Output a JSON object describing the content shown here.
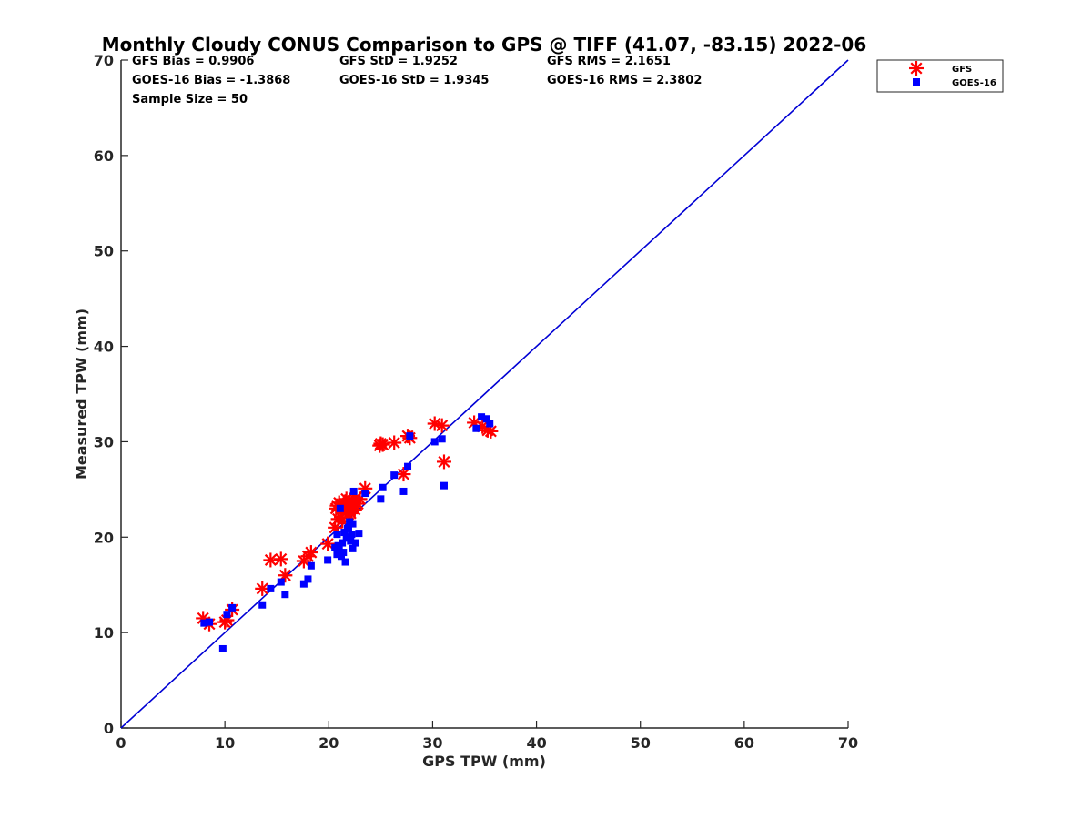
{
  "chart_data": {
    "type": "scatter",
    "title": "Monthly Cloudy CONUS Comparison to GPS @ TIFF (41.07, -83.15) 2022-06",
    "xlabel": "GPS TPW (mm)",
    "ylabel": "Measured TPW (mm)",
    "xlim": [
      0,
      70
    ],
    "ylim": [
      0,
      70
    ],
    "xticks": [
      0,
      10,
      20,
      30,
      40,
      50,
      60,
      70
    ],
    "yticks": [
      0,
      10,
      20,
      30,
      40,
      50,
      60,
      70
    ],
    "grid": false,
    "legend_position": "top-right outside",
    "reference_line": {
      "x": [
        0,
        70
      ],
      "y": [
        0,
        70
      ],
      "color": "#0000d4"
    },
    "stats": {
      "gfs_bias": "GFS Bias = 0.9906",
      "gfs_std": "GFS StD = 1.9252",
      "gfs_rms": "GFS RMS = 2.1651",
      "goes_bias": "GOES-16 Bias = -1.3868",
      "goes_std": "GOES-16 StD = 1.9345",
      "goes_rms": "GOES-16 RMS = 2.3802",
      "sample_size": "Sample Size = 50"
    },
    "series": [
      {
        "name": "GFS",
        "marker": "asterisk",
        "color": "#ff0000",
        "points": [
          [
            7.9,
            11.5
          ],
          [
            8.5,
            10.9
          ],
          [
            10.0,
            11.1
          ],
          [
            10.2,
            11.3
          ],
          [
            10.7,
            12.4
          ],
          [
            13.6,
            14.6
          ],
          [
            14.4,
            17.6
          ],
          [
            15.4,
            17.7
          ],
          [
            15.8,
            16.0
          ],
          [
            17.6,
            17.5
          ],
          [
            18.0,
            18.0
          ],
          [
            18.3,
            18.4
          ],
          [
            19.9,
            19.3
          ],
          [
            20.6,
            21.0
          ],
          [
            20.8,
            23.3
          ],
          [
            21.0,
            23.6
          ],
          [
            21.2,
            22.1
          ],
          [
            21.3,
            21.7
          ],
          [
            21.5,
            23.0
          ],
          [
            21.8,
            23.3
          ],
          [
            22.0,
            23.9
          ],
          [
            22.2,
            23.6
          ],
          [
            22.4,
            23.2
          ],
          [
            22.6,
            24.1
          ],
          [
            22.8,
            23.5
          ],
          [
            23.5,
            25.1
          ],
          [
            24.9,
            29.6
          ],
          [
            25.2,
            29.7
          ],
          [
            26.3,
            29.9
          ],
          [
            27.2,
            26.6
          ],
          [
            27.6,
            30.6
          ],
          [
            27.8,
            30.4
          ],
          [
            30.2,
            31.9
          ],
          [
            30.9,
            31.7
          ],
          [
            31.1,
            27.9
          ],
          [
            34.0,
            32.0
          ],
          [
            34.8,
            31.6
          ],
          [
            35.3,
            31.2
          ],
          [
            35.6,
            31.1
          ],
          [
            22.1,
            22.5
          ],
          [
            20.9,
            21.9
          ],
          [
            21.6,
            22.8
          ],
          [
            22.3,
            23.8
          ],
          [
            21.4,
            23.4
          ],
          [
            23.0,
            24.0
          ],
          [
            21.7,
            24.0
          ],
          [
            20.7,
            23.0
          ],
          [
            22.5,
            22.9
          ],
          [
            21.9,
            22.4
          ],
          [
            25.0,
            29.8
          ]
        ]
      },
      {
        "name": "GOES-16",
        "marker": "square",
        "color": "#0000ff",
        "points": [
          [
            8.0,
            11.0
          ],
          [
            8.5,
            11.1
          ],
          [
            9.8,
            8.3
          ],
          [
            10.2,
            11.9
          ],
          [
            10.7,
            12.6
          ],
          [
            13.6,
            12.9
          ],
          [
            14.4,
            14.6
          ],
          [
            15.4,
            15.3
          ],
          [
            15.8,
            14.0
          ],
          [
            17.6,
            15.1
          ],
          [
            18.0,
            15.6
          ],
          [
            18.3,
            17.0
          ],
          [
            19.9,
            17.6
          ],
          [
            20.6,
            18.9
          ],
          [
            20.8,
            18.2
          ],
          [
            21.0,
            18.7
          ],
          [
            21.1,
            23.0
          ],
          [
            21.2,
            18.0
          ],
          [
            21.3,
            19.4
          ],
          [
            21.5,
            20.5
          ],
          [
            21.6,
            17.4
          ],
          [
            21.8,
            20.9
          ],
          [
            22.0,
            21.6
          ],
          [
            22.1,
            19.6
          ],
          [
            22.2,
            20.3
          ],
          [
            22.3,
            18.8
          ],
          [
            22.4,
            24.8
          ],
          [
            22.6,
            19.4
          ],
          [
            22.9,
            20.4
          ],
          [
            23.5,
            24.6
          ],
          [
            25.0,
            24.0
          ],
          [
            25.2,
            25.2
          ],
          [
            26.3,
            26.5
          ],
          [
            27.2,
            24.8
          ],
          [
            27.6,
            27.4
          ],
          [
            27.8,
            30.6
          ],
          [
            30.2,
            30.0
          ],
          [
            30.9,
            30.3
          ],
          [
            31.1,
            25.4
          ],
          [
            34.2,
            31.4
          ],
          [
            34.7,
            32.6
          ],
          [
            35.2,
            32.4
          ],
          [
            35.5,
            31.9
          ],
          [
            21.9,
            21.0
          ],
          [
            22.3,
            21.4
          ],
          [
            21.7,
            19.9
          ],
          [
            20.9,
            19.1
          ],
          [
            21.4,
            18.4
          ],
          [
            22.0,
            20.0
          ],
          [
            20.8,
            20.3
          ]
        ]
      }
    ]
  }
}
